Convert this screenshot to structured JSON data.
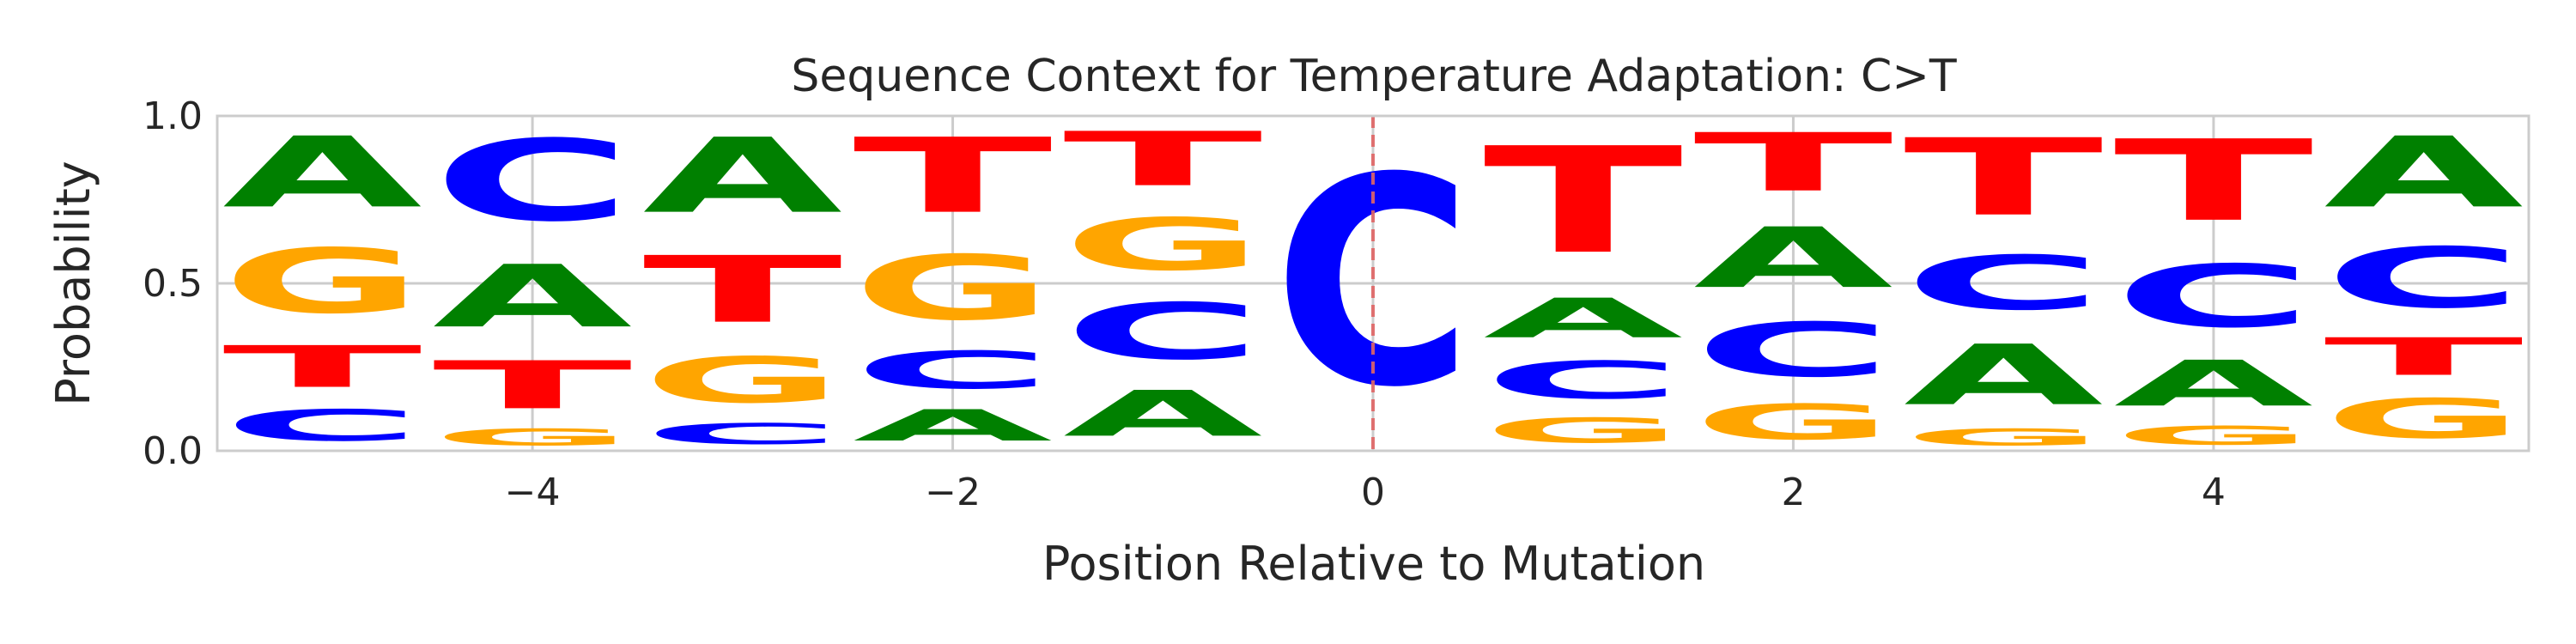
{
  "chart_data": {
    "type": "sequence-logo",
    "title": "Sequence Context for Temperature Adaptation: C>T",
    "xlabel": "Position Relative to Mutation",
    "ylabel": "Probability",
    "xlim": [
      -5.5,
      5.5
    ],
    "ylim": [
      0,
      1
    ],
    "x_ticks": [
      -4,
      -2,
      0,
      2,
      4
    ],
    "x_tick_labels": [
      "−4",
      "−2",
      "0",
      "2",
      "4"
    ],
    "y_ticks": [
      0,
      0.5,
      1
    ],
    "y_tick_labels": [
      "0.0",
      "0.5",
      "1.0"
    ],
    "grid": true,
    "mutation_marker": {
      "x": 0,
      "style": "dashed",
      "color": "#e06666"
    },
    "base_colors": {
      "A": "#008000",
      "C": "#0000ff",
      "G": "#ffa500",
      "T": "#ff0000"
    },
    "positions": [
      {
        "x": -5,
        "stack": [
          {
            "base": "C",
            "p": 0.15
          },
          {
            "base": "T",
            "p": 0.2
          },
          {
            "base": "G",
            "p": 0.31
          },
          {
            "base": "A",
            "p": 0.34
          }
        ]
      },
      {
        "x": -4,
        "stack": [
          {
            "base": "G",
            "p": 0.08
          },
          {
            "base": "T",
            "p": 0.23
          },
          {
            "base": "A",
            "p": 0.3
          },
          {
            "base": "C",
            "p": 0.39
          }
        ]
      },
      {
        "x": -3,
        "stack": [
          {
            "base": "C",
            "p": 0.1
          },
          {
            "base": "G",
            "p": 0.22
          },
          {
            "base": "T",
            "p": 0.32
          },
          {
            "base": "A",
            "p": 0.36
          }
        ]
      },
      {
        "x": -2,
        "stack": [
          {
            "base": "A",
            "p": 0.15
          },
          {
            "base": "C",
            "p": 0.18
          },
          {
            "base": "G",
            "p": 0.31
          },
          {
            "base": "T",
            "p": 0.36
          }
        ]
      },
      {
        "x": -1,
        "stack": [
          {
            "base": "A",
            "p": 0.22
          },
          {
            "base": "C",
            "p": 0.27
          },
          {
            "base": "G",
            "p": 0.25
          },
          {
            "base": "T",
            "p": 0.26
          }
        ]
      },
      {
        "x": 0,
        "stack": [
          {
            "base": "C",
            "p": 1.0
          }
        ]
      },
      {
        "x": 1,
        "stack": [
          {
            "base": "G",
            "p": 0.12
          },
          {
            "base": "C",
            "p": 0.18
          },
          {
            "base": "A",
            "p": 0.19
          },
          {
            "base": "T",
            "p": 0.51
          }
        ]
      },
      {
        "x": 2,
        "stack": [
          {
            "base": "G",
            "p": 0.17
          },
          {
            "base": "C",
            "p": 0.26
          },
          {
            "base": "A",
            "p": 0.29
          },
          {
            "base": "T",
            "p": 0.28
          }
        ]
      },
      {
        "x": 3,
        "stack": [
          {
            "base": "G",
            "p": 0.08
          },
          {
            "base": "A",
            "p": 0.29
          },
          {
            "base": "C",
            "p": 0.26
          },
          {
            "base": "T",
            "p": 0.37
          }
        ]
      },
      {
        "x": 4,
        "stack": [
          {
            "base": "G",
            "p": 0.09
          },
          {
            "base": "A",
            "p": 0.22
          },
          {
            "base": "C",
            "p": 0.3
          },
          {
            "base": "T",
            "p": 0.39
          }
        ]
      },
      {
        "x": 5,
        "stack": [
          {
            "base": "G",
            "p": 0.19
          },
          {
            "base": "T",
            "p": 0.18
          },
          {
            "base": "C",
            "p": 0.29
          },
          {
            "base": "A",
            "p": 0.34
          }
        ]
      }
    ]
  }
}
